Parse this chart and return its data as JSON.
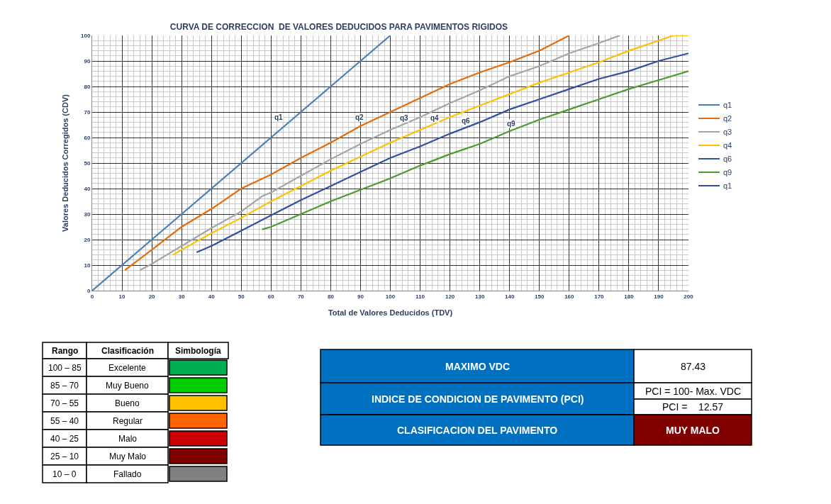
{
  "chart_data": [
    {
      "type": "line",
      "title": "CURVA DE CORRECCION  DE VALORES DEDUCIDOS PARA PAVIMENTOS RIGIDOS",
      "xlabel": "Total de Valores Deducidos (TDV)",
      "ylabel": "Valores Deducidos Corregidos (CDV)",
      "xlim": [
        0,
        200
      ],
      "ylim": [
        0,
        100
      ],
      "xticks": [
        0,
        10,
        20,
        30,
        40,
        50,
        60,
        70,
        80,
        90,
        100,
        110,
        120,
        130,
        140,
        150,
        160,
        170,
        180,
        190,
        200
      ],
      "yticks": [
        0,
        10,
        20,
        30,
        40,
        50,
        60,
        70,
        80,
        90,
        100
      ],
      "grid": true,
      "legend": "right",
      "marker": "none",
      "line_style": "solid",
      "series": [
        {
          "name": "q1",
          "color": "#4a7ebb",
          "x": [
            0,
            100
          ],
          "values": [
            0,
            100
          ]
        },
        {
          "name": "q2",
          "color": "#e46c0a",
          "x": [
            11,
            20,
            30,
            40,
            50,
            60,
            70,
            80,
            90,
            100,
            110,
            120,
            130,
            140,
            150,
            160
          ],
          "values": [
            8,
            16,
            25,
            32,
            40,
            45.5,
            52,
            58,
            64.5,
            70,
            75.5,
            81,
            85.5,
            89.5,
            94,
            100
          ]
        },
        {
          "name": "q3",
          "color": "#a5a5a5",
          "x": [
            16,
            20,
            30,
            40,
            50,
            57,
            60,
            70,
            80,
            90,
            100,
            110,
            120,
            130,
            140,
            150,
            160,
            170,
            177
          ],
          "values": [
            8,
            10.5,
            17.5,
            24.5,
            31,
            37,
            38.5,
            45,
            51.5,
            57.5,
            63,
            68,
            73.5,
            78.5,
            84,
            88,
            93,
            97,
            100
          ]
        },
        {
          "name": "q4",
          "color": "#ffc000",
          "x": [
            27,
            30,
            40,
            50,
            60,
            70,
            80,
            90,
            100,
            110,
            120,
            130,
            140,
            150,
            160,
            170,
            180,
            190,
            195,
            200
          ],
          "values": [
            14,
            16,
            22.5,
            28.5,
            35,
            41,
            47,
            52.5,
            58,
            63,
            68,
            72.5,
            77,
            81.5,
            85.5,
            89.5,
            94,
            98,
            100,
            100
          ]
        },
        {
          "name": "q6",
          "color": "#2f52a0",
          "x": [
            35,
            40,
            50,
            60,
            70,
            80,
            90,
            100,
            110,
            120,
            130,
            140,
            150,
            160,
            170,
            180,
            190,
            200
          ],
          "values": [
            15,
            17.5,
            23.5,
            29.5,
            35.5,
            41,
            46.5,
            52,
            56.5,
            61.5,
            66,
            71,
            75,
            79,
            83,
            86,
            90,
            93
          ]
        },
        {
          "name": "q9",
          "color": "#4e9a2f",
          "x": [
            57,
            60,
            70,
            80,
            90,
            100,
            110,
            120,
            130,
            140,
            150,
            160,
            170,
            180,
            190,
            200
          ],
          "values": [
            24,
            25,
            30,
            35,
            39.5,
            44,
            49,
            53.5,
            57.5,
            62.5,
            67,
            71,
            75,
            79,
            82.5,
            86
          ]
        },
        {
          "name": "q1",
          "color": "#2f52a0"
        }
      ],
      "annotations": [
        "q1",
        "q2",
        "q3",
        "q4",
        "q6",
        "q9"
      ]
    },
    {
      "type": "other",
      "annotations": [
        "Rango",
        "Clasificación",
        "Simbología",
        "100 – 85",
        "Excelente",
        "85 – 70",
        "Muy Bueno",
        "70 – 55",
        "Bueno",
        "55 – 40",
        "Regular",
        "40 – 25",
        "Malo",
        "25 – 10",
        "Muy Malo",
        "10 – 0",
        "Fallado",
        "MAXIMO VDC",
        "87.43",
        "INDICE DE CONDICION DE PAVIMENTO (PCI)",
        "PCI = 100- Max. VDC",
        "PCI =    12.57",
        "CLASIFICACION DEL PAVIMENTO",
        "MUY MALO"
      ],
      "colors": [
        "#00b050",
        "#00cc00",
        "#ffc000",
        "#ff6600",
        "#cc0000",
        "#800000",
        "#808080",
        "#0070c0",
        "#800000"
      ]
    }
  ]
}
